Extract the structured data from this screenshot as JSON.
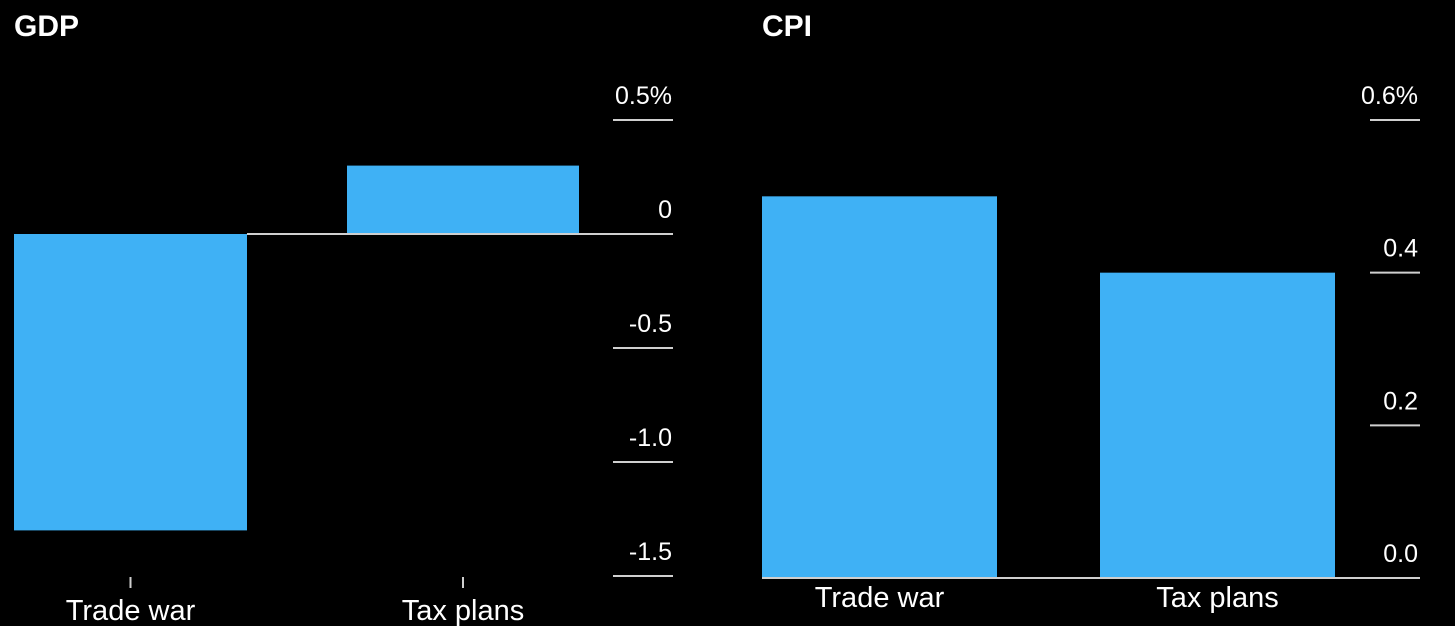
{
  "chart_data": [
    {
      "type": "bar",
      "title": "GDP",
      "categories": [
        "Trade war",
        "Tax plans"
      ],
      "values": [
        -1.3,
        0.3
      ],
      "ylim": [
        -1.5,
        0.5
      ],
      "yticks": [
        0.5,
        0,
        -0.5,
        -1.0,
        -1.5
      ],
      "ytick_labels": [
        "0.5%",
        "0",
        "-0.5",
        "-1.0",
        "-1.5"
      ],
      "axis_side": "right",
      "grid": false,
      "bar_color": "#3FB1F5"
    },
    {
      "type": "bar",
      "title": "CPI",
      "categories": [
        "Trade war",
        "Tax plans"
      ],
      "values": [
        0.5,
        0.4
      ],
      "ylim": [
        0,
        0.6
      ],
      "yticks": [
        0.6,
        0.4,
        0.2,
        0.0
      ],
      "ytick_labels": [
        "0.6%",
        "0.4",
        "0.2",
        "0.0"
      ],
      "axis_side": "right",
      "grid": false,
      "bar_color": "#3FB1F5"
    }
  ],
  "colors": {
    "background": "#000000",
    "bar": "#3FB1F5",
    "text": "#ffffff",
    "axis": "#cfcfcf"
  }
}
